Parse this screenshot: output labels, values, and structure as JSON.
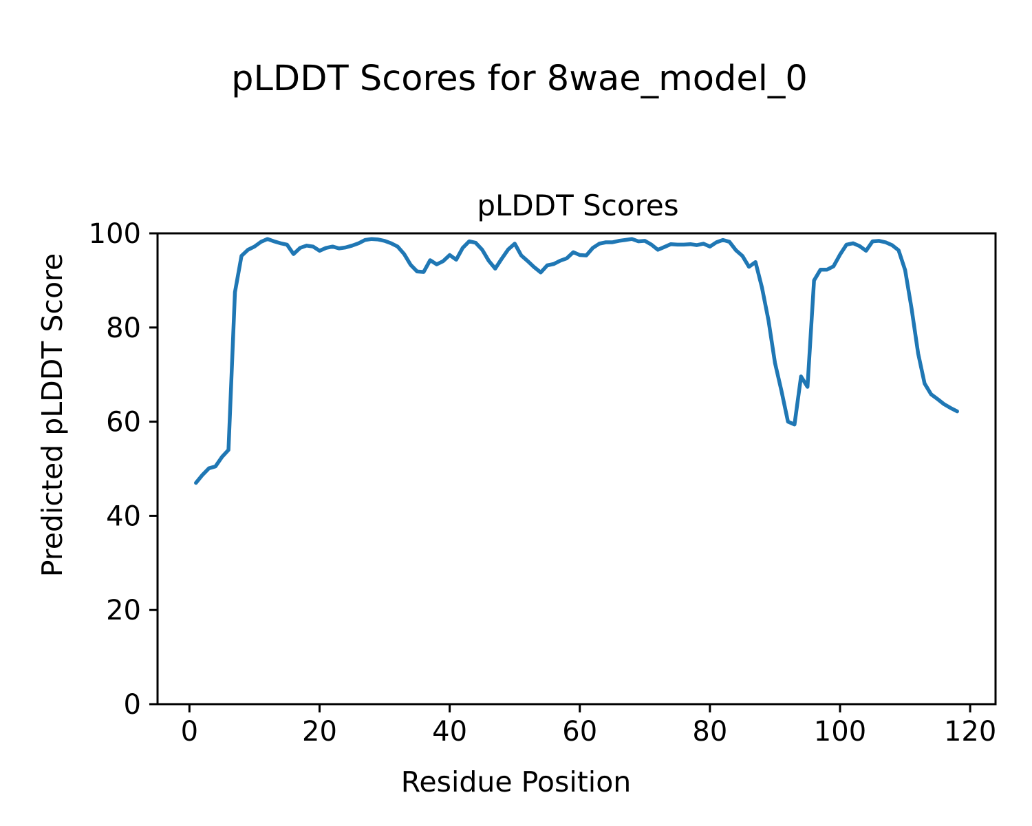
{
  "figure": {
    "suptitle": "pLDDT Scores for 8wae_model_0",
    "axes_title": "pLDDT Scores",
    "xlabel": "Residue Position",
    "ylabel": "Predicted pLDDT Score"
  },
  "chart_data": {
    "type": "line",
    "title": "pLDDT Scores",
    "xlabel": "Residue Position",
    "ylabel": "Predicted pLDDT Score",
    "series": [
      {
        "name": "pLDDT",
        "x_start": 1,
        "x_step": 1,
        "values": [
          47.0,
          48.7,
          50.1,
          50.5,
          52.5,
          54.0,
          87.5,
          95.2,
          96.5,
          97.2,
          98.2,
          98.8,
          98.3,
          97.9,
          97.6,
          95.6,
          96.9,
          97.4,
          97.2,
          96.3,
          96.9,
          97.2,
          96.8,
          97.0,
          97.4,
          97.9,
          98.6,
          98.8,
          98.7,
          98.4,
          97.9,
          97.2,
          95.6,
          93.3,
          91.9,
          91.8,
          94.3,
          93.4,
          94.1,
          95.4,
          94.4,
          96.9,
          98.3,
          98.0,
          96.5,
          94.2,
          92.5,
          94.6,
          96.6,
          97.8,
          95.3,
          94.1,
          92.8,
          91.7,
          93.2,
          93.5,
          94.2,
          94.7,
          96.0,
          95.4,
          95.3,
          96.9,
          97.8,
          98.1,
          98.1,
          98.4,
          98.6,
          98.8,
          98.3,
          98.4,
          97.6,
          96.5,
          97.1,
          97.7,
          97.6,
          97.6,
          97.7,
          97.5,
          97.8,
          97.2,
          98.1,
          98.6,
          98.2,
          96.4,
          95.2,
          92.9,
          93.9,
          88.5,
          81.5,
          72.5,
          66.5,
          60.0,
          59.4,
          69.6,
          67.4,
          90.0,
          92.3,
          92.3,
          93.0,
          95.5,
          97.6,
          97.9,
          97.3,
          96.3,
          98.3,
          98.4,
          98.1,
          97.5,
          96.4,
          92.2,
          84.0,
          74.5,
          68.1,
          65.8,
          64.8,
          63.7,
          62.9,
          62.2
        ]
      }
    ],
    "line_color": "#1f77b4",
    "axis_color": "#000000",
    "xlim": [
      -4.9,
      123.9
    ],
    "ylim": [
      0,
      100
    ],
    "x_ticks": [
      0,
      20,
      40,
      60,
      80,
      100,
      120
    ],
    "y_ticks": [
      0,
      20,
      40,
      60,
      80,
      100
    ],
    "grid": false,
    "legend": "none"
  }
}
